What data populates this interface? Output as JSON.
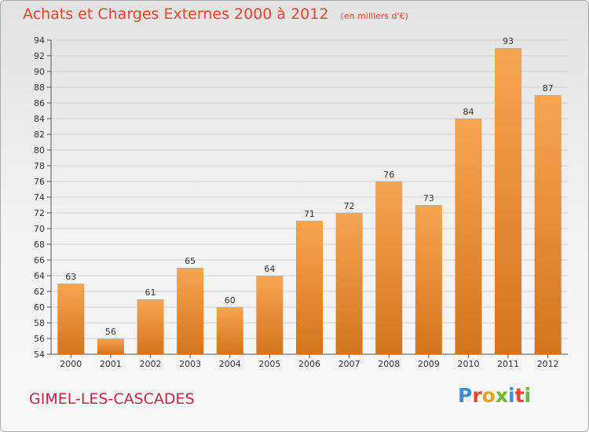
{
  "title": "Achats et Charges Externes 2000 à 2012",
  "unit_note": "(en milliers d'€)",
  "commune": "GIMEL-LES-CASCADES",
  "logo": {
    "letters": [
      "P",
      "r",
      "o",
      "x",
      "i",
      "t",
      "i"
    ],
    "colors": [
      "#3a8ed8",
      "#e8462c",
      "#f0a020",
      "#6cb82c",
      "#3a8ed8",
      "#e8462c",
      "#6cb82c"
    ]
  },
  "colors": {
    "title": "#e8462c",
    "bar_light": "#f7a552",
    "bar_dark": "#d4741e",
    "commune": "#cc2244"
  },
  "chart_data": {
    "type": "bar",
    "categories": [
      "2000",
      "2001",
      "2002",
      "2003",
      "2004",
      "2005",
      "2006",
      "2007",
      "2008",
      "2009",
      "2010",
      "2011",
      "2012"
    ],
    "values": [
      63,
      56,
      61,
      65,
      60,
      64,
      71,
      72,
      76,
      73,
      84,
      93,
      87
    ],
    "title": "Achats et Charges Externes 2000 à 2012",
    "ylabel": "",
    "xlabel": "",
    "ylim": [
      54,
      94
    ],
    "yticks": [
      54,
      56,
      58,
      60,
      62,
      64,
      66,
      68,
      70,
      72,
      74,
      76,
      78,
      80,
      82,
      84,
      86,
      88,
      90,
      92,
      94
    ],
    "grid": true,
    "data_labels": true
  }
}
